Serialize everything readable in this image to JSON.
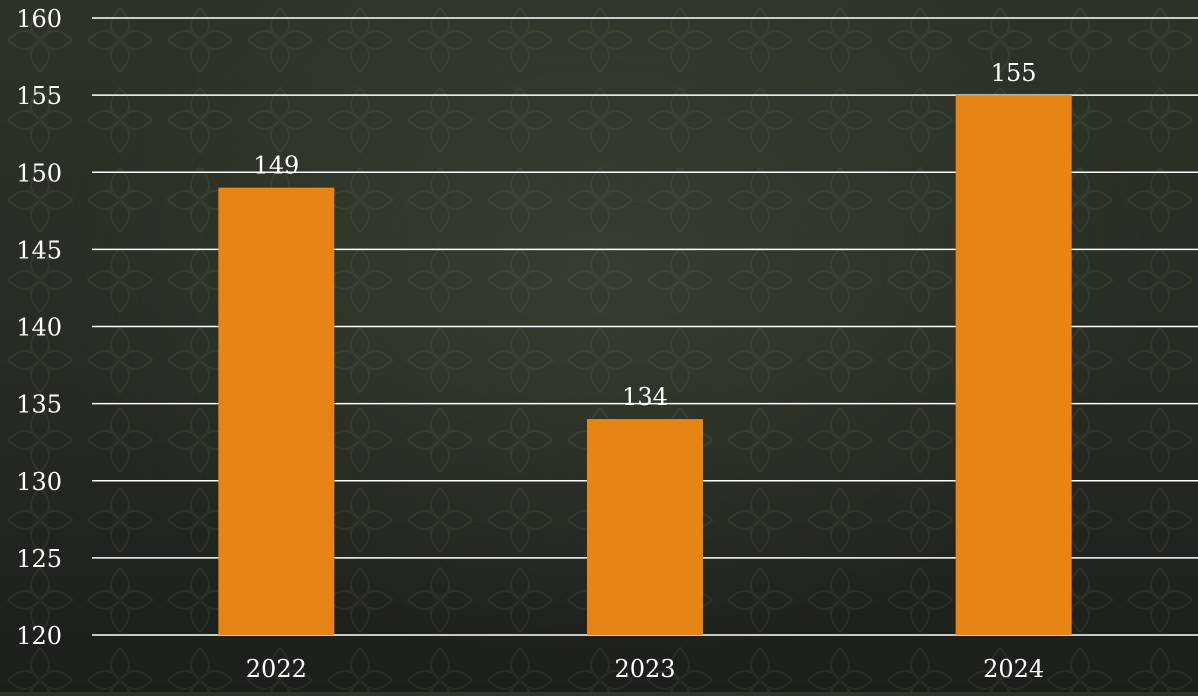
{
  "colors": {
    "bar": "#e68515",
    "grid": "#ffffff",
    "text": "#ffffff",
    "background": "#262c24"
  },
  "chart_data": {
    "type": "bar",
    "categories": [
      "2022",
      "2023",
      "2024"
    ],
    "values": [
      149,
      134,
      155
    ],
    "data_labels": [
      "149",
      "134",
      "155"
    ],
    "title": "",
    "xlabel": "",
    "ylabel": "",
    "ylim": [
      120,
      160
    ],
    "yticks": [
      "120",
      "125",
      "130",
      "135",
      "140",
      "145",
      "150",
      "155",
      "160"
    ],
    "grid": true,
    "legend": "none"
  }
}
